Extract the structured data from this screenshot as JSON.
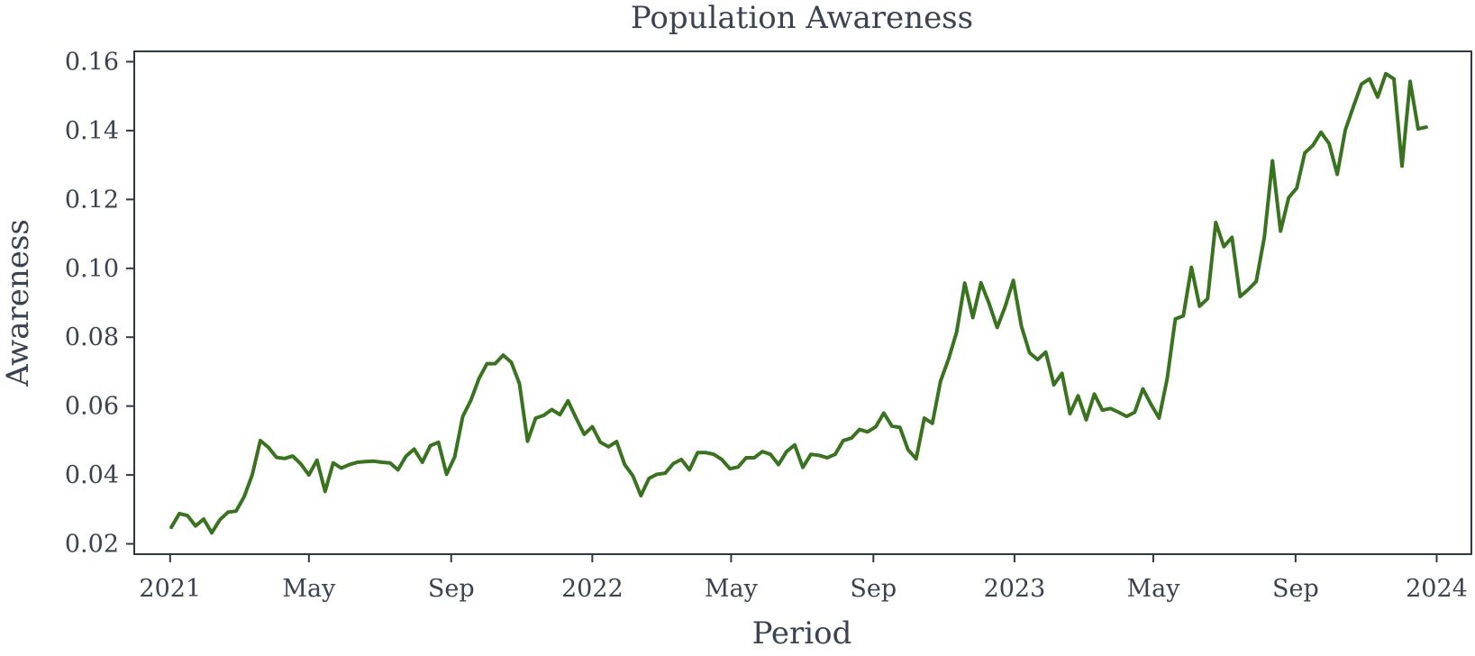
{
  "chart_data": {
    "type": "line",
    "title": "Population Awareness",
    "xlabel": "Period",
    "ylabel": "Awareness",
    "grid": false,
    "legend": "none",
    "colors": {
      "line": "#3a7320",
      "axes": "#2f3742",
      "text": "#3b4250"
    },
    "xlim": [
      "2020-12-01",
      "2024-01-31"
    ],
    "ylim": [
      0.017,
      0.163
    ],
    "x_ticks": [
      {
        "date": "2021-01-01",
        "label": "2021"
      },
      {
        "date": "2021-05-01",
        "label": "May"
      },
      {
        "date": "2021-09-01",
        "label": "Sep"
      },
      {
        "date": "2022-01-01",
        "label": "2022"
      },
      {
        "date": "2022-05-01",
        "label": "May"
      },
      {
        "date": "2022-09-01",
        "label": "Sep"
      },
      {
        "date": "2023-01-01",
        "label": "2023"
      },
      {
        "date": "2023-05-01",
        "label": "May"
      },
      {
        "date": "2023-09-01",
        "label": "Sep"
      },
      {
        "date": "2024-01-01",
        "label": "2024"
      }
    ],
    "y_ticks": [
      0.02,
      0.04,
      0.06,
      0.08,
      0.1,
      0.12,
      0.14,
      0.16
    ],
    "y_tick_labels": [
      "0.02",
      "0.04",
      "0.06",
      "0.08",
      "0.10",
      "0.12",
      "0.14",
      "0.16"
    ],
    "series": [
      {
        "x": [
          "2021-01-02",
          "2021-01-09",
          "2021-01-16",
          "2021-01-23",
          "2021-01-30",
          "2021-02-06",
          "2021-02-13",
          "2021-02-20",
          "2021-02-27",
          "2021-03-06",
          "2021-03-13",
          "2021-03-20",
          "2021-03-27",
          "2021-04-03",
          "2021-04-10",
          "2021-04-17",
          "2021-04-24",
          "2021-05-01",
          "2021-05-08",
          "2021-05-15",
          "2021-05-22",
          "2021-05-29",
          "2021-06-05",
          "2021-06-12",
          "2021-06-19",
          "2021-06-26",
          "2021-07-03",
          "2021-07-10",
          "2021-07-17",
          "2021-07-24",
          "2021-07-31",
          "2021-08-07",
          "2021-08-14",
          "2021-08-21",
          "2021-08-28",
          "2021-09-04",
          "2021-09-11",
          "2021-09-18",
          "2021-09-25",
          "2021-10-02",
          "2021-10-09",
          "2021-10-16",
          "2021-10-23",
          "2021-10-30",
          "2021-11-06",
          "2021-11-13",
          "2021-11-20",
          "2021-11-27",
          "2021-12-04",
          "2021-12-11",
          "2021-12-18",
          "2021-12-25",
          "2022-01-01",
          "2022-01-08",
          "2022-01-15",
          "2022-01-22",
          "2022-01-29",
          "2022-02-05",
          "2022-02-12",
          "2022-02-19",
          "2022-02-26",
          "2022-03-05",
          "2022-03-12",
          "2022-03-19",
          "2022-03-26",
          "2022-04-02",
          "2022-04-09",
          "2022-04-16",
          "2022-04-23",
          "2022-04-30",
          "2022-05-07",
          "2022-05-14",
          "2022-05-21",
          "2022-05-28",
          "2022-06-04",
          "2022-06-11",
          "2022-06-18",
          "2022-06-25",
          "2022-07-02",
          "2022-07-09",
          "2022-07-16",
          "2022-07-23",
          "2022-07-30",
          "2022-08-06",
          "2022-08-13",
          "2022-08-20",
          "2022-08-27",
          "2022-09-03",
          "2022-09-10",
          "2022-09-17",
          "2022-09-24",
          "2022-10-01",
          "2022-10-08",
          "2022-10-15",
          "2022-10-22",
          "2022-10-29",
          "2022-11-05",
          "2022-11-12",
          "2022-11-19",
          "2022-11-26",
          "2022-12-03",
          "2022-12-10",
          "2022-12-17",
          "2022-12-24",
          "2022-12-31",
          "2023-01-07",
          "2023-01-14",
          "2023-01-21",
          "2023-01-28",
          "2023-02-04",
          "2023-02-11",
          "2023-02-18",
          "2023-02-25",
          "2023-03-04",
          "2023-03-11",
          "2023-03-18",
          "2023-03-25",
          "2023-04-01",
          "2023-04-08",
          "2023-04-15",
          "2023-04-22",
          "2023-04-29",
          "2023-05-06",
          "2023-05-13",
          "2023-05-20",
          "2023-05-27",
          "2023-06-03",
          "2023-06-10",
          "2023-06-17",
          "2023-06-24",
          "2023-07-01",
          "2023-07-08",
          "2023-07-15",
          "2023-07-22",
          "2023-07-29",
          "2023-08-05",
          "2023-08-12",
          "2023-08-19",
          "2023-08-26",
          "2023-09-02",
          "2023-09-09",
          "2023-09-16",
          "2023-09-23",
          "2023-09-30",
          "2023-10-07",
          "2023-10-14",
          "2023-10-21",
          "2023-10-28",
          "2023-11-04",
          "2023-11-11",
          "2023-11-18",
          "2023-11-25",
          "2023-12-02",
          "2023-12-09",
          "2023-12-16",
          "2023-12-23"
        ],
        "y": [
          0.0248,
          0.0288,
          0.0282,
          0.0252,
          0.0272,
          0.0232,
          0.027,
          0.0292,
          0.0295,
          0.0337,
          0.04,
          0.05,
          0.048,
          0.0451,
          0.0448,
          0.0455,
          0.0432,
          0.04,
          0.0443,
          0.0352,
          0.0435,
          0.042,
          0.043,
          0.0437,
          0.0439,
          0.044,
          0.0437,
          0.0435,
          0.0415,
          0.0455,
          0.0475,
          0.0437,
          0.0485,
          0.0495,
          0.0402,
          0.0452,
          0.057,
          0.0617,
          0.068,
          0.0723,
          0.0723,
          0.0748,
          0.0727,
          0.0665,
          0.0498,
          0.0565,
          0.0573,
          0.059,
          0.0575,
          0.0615,
          0.0565,
          0.0518,
          0.054,
          0.0495,
          0.0482,
          0.0497,
          0.043,
          0.0398,
          0.034,
          0.039,
          0.0402,
          0.0405,
          0.0433,
          0.0445,
          0.0415,
          0.0465,
          0.0465,
          0.046,
          0.0445,
          0.0418,
          0.0423,
          0.045,
          0.045,
          0.0468,
          0.046,
          0.043,
          0.0468,
          0.0487,
          0.0422,
          0.046,
          0.0457,
          0.045,
          0.046,
          0.05,
          0.0507,
          0.0532,
          0.0525,
          0.054,
          0.058,
          0.0542,
          0.0538,
          0.0473,
          0.0447,
          0.0565,
          0.055,
          0.0672,
          0.0737,
          0.0815,
          0.0957,
          0.0857,
          0.0958,
          0.0898,
          0.0828,
          0.089,
          0.0965,
          0.0832,
          0.0755,
          0.0735,
          0.0757,
          0.0662,
          0.0695,
          0.0578,
          0.063,
          0.056,
          0.0635,
          0.0588,
          0.0593,
          0.0582,
          0.057,
          0.0582,
          0.065,
          0.0605,
          0.0565,
          0.068,
          0.0853,
          0.0862,
          0.1003,
          0.089,
          0.0912,
          0.1133,
          0.1063,
          0.109,
          0.0918,
          0.0938,
          0.0962,
          0.109,
          0.1312,
          0.1108,
          0.1205,
          0.1233,
          0.1335,
          0.1357,
          0.1395,
          0.1362,
          0.1273,
          0.1402,
          0.147,
          0.1535,
          0.155,
          0.1497,
          0.1565,
          0.155,
          0.1297,
          0.1543,
          0.1405,
          0.141
        ]
      }
    ]
  }
}
